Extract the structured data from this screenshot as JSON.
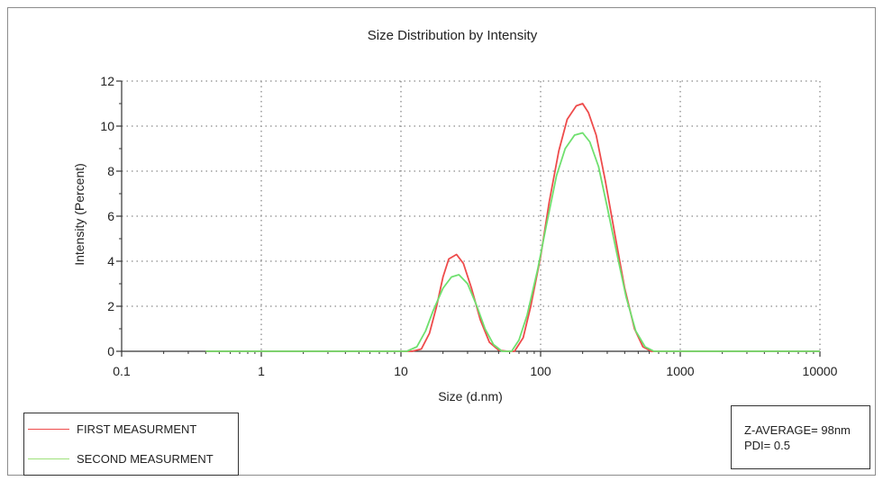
{
  "chart_data": {
    "type": "line",
    "title": "Size Distribution by Intensity",
    "xlabel": "Size (d.nm)",
    "ylabel": "Intensity (Percent)",
    "xscale": "log",
    "xlim": [
      0.1,
      10000
    ],
    "ylim": [
      0,
      12
    ],
    "xticks": [
      0.1,
      1,
      10,
      100,
      1000,
      10000
    ],
    "xtick_labels": [
      "0.1",
      "1",
      "10",
      "100",
      "1000",
      "10000"
    ],
    "yticks": [
      0,
      2,
      4,
      6,
      8,
      10,
      12
    ],
    "ytick_labels": [
      "0",
      "2",
      "4",
      "6",
      "8",
      "10",
      "12"
    ],
    "grid": true,
    "series": [
      {
        "name": "FIRST MEASURMENT",
        "color": "#ee4b4b",
        "points": [
          [
            0.4,
            0
          ],
          [
            12,
            0
          ],
          [
            14,
            0.1
          ],
          [
            16,
            0.8
          ],
          [
            18,
            2.0
          ],
          [
            20,
            3.3
          ],
          [
            22,
            4.1
          ],
          [
            25,
            4.3
          ],
          [
            28,
            3.9
          ],
          [
            32,
            2.8
          ],
          [
            37,
            1.4
          ],
          [
            43,
            0.4
          ],
          [
            50,
            0.05
          ],
          [
            58,
            0
          ],
          [
            65,
            0
          ],
          [
            75,
            0.6
          ],
          [
            85,
            2.0
          ],
          [
            100,
            4.2
          ],
          [
            115,
            6.6
          ],
          [
            135,
            8.9
          ],
          [
            155,
            10.3
          ],
          [
            180,
            10.9
          ],
          [
            200,
            11.0
          ],
          [
            220,
            10.6
          ],
          [
            250,
            9.6
          ],
          [
            290,
            7.6
          ],
          [
            340,
            5.2
          ],
          [
            400,
            2.8
          ],
          [
            470,
            1.0
          ],
          [
            540,
            0.2
          ],
          [
            620,
            0
          ],
          [
            700,
            0
          ],
          [
            10000,
            0
          ]
        ]
      },
      {
        "name": "SECOND MEASURMENT",
        "color": "#6fe06f",
        "points": [
          [
            0.4,
            0
          ],
          [
            11,
            0
          ],
          [
            13,
            0.2
          ],
          [
            15,
            0.9
          ],
          [
            17,
            1.8
          ],
          [
            20,
            2.8
          ],
          [
            23,
            3.3
          ],
          [
            26,
            3.4
          ],
          [
            30,
            3.0
          ],
          [
            35,
            2.0
          ],
          [
            40,
            1.0
          ],
          [
            46,
            0.3
          ],
          [
            53,
            0
          ],
          [
            62,
            0
          ],
          [
            70,
            0.5
          ],
          [
            80,
            1.6
          ],
          [
            95,
            3.6
          ],
          [
            110,
            5.6
          ],
          [
            130,
            7.8
          ],
          [
            150,
            9.0
          ],
          [
            175,
            9.6
          ],
          [
            200,
            9.7
          ],
          [
            225,
            9.3
          ],
          [
            260,
            8.2
          ],
          [
            300,
            6.4
          ],
          [
            350,
            4.4
          ],
          [
            410,
            2.4
          ],
          [
            480,
            0.9
          ],
          [
            560,
            0.2
          ],
          [
            650,
            0
          ],
          [
            10000,
            0
          ]
        ]
      }
    ]
  },
  "legend": {
    "items": [
      {
        "label": "FIRST MEASURMENT",
        "color": "#ee4b4b"
      },
      {
        "label": "SECOND MEASURMENT",
        "color": "#9ee07a"
      }
    ]
  },
  "info": {
    "line1": "Z-AVERAGE= 98nm",
    "line2": "PDI= 0.5"
  }
}
